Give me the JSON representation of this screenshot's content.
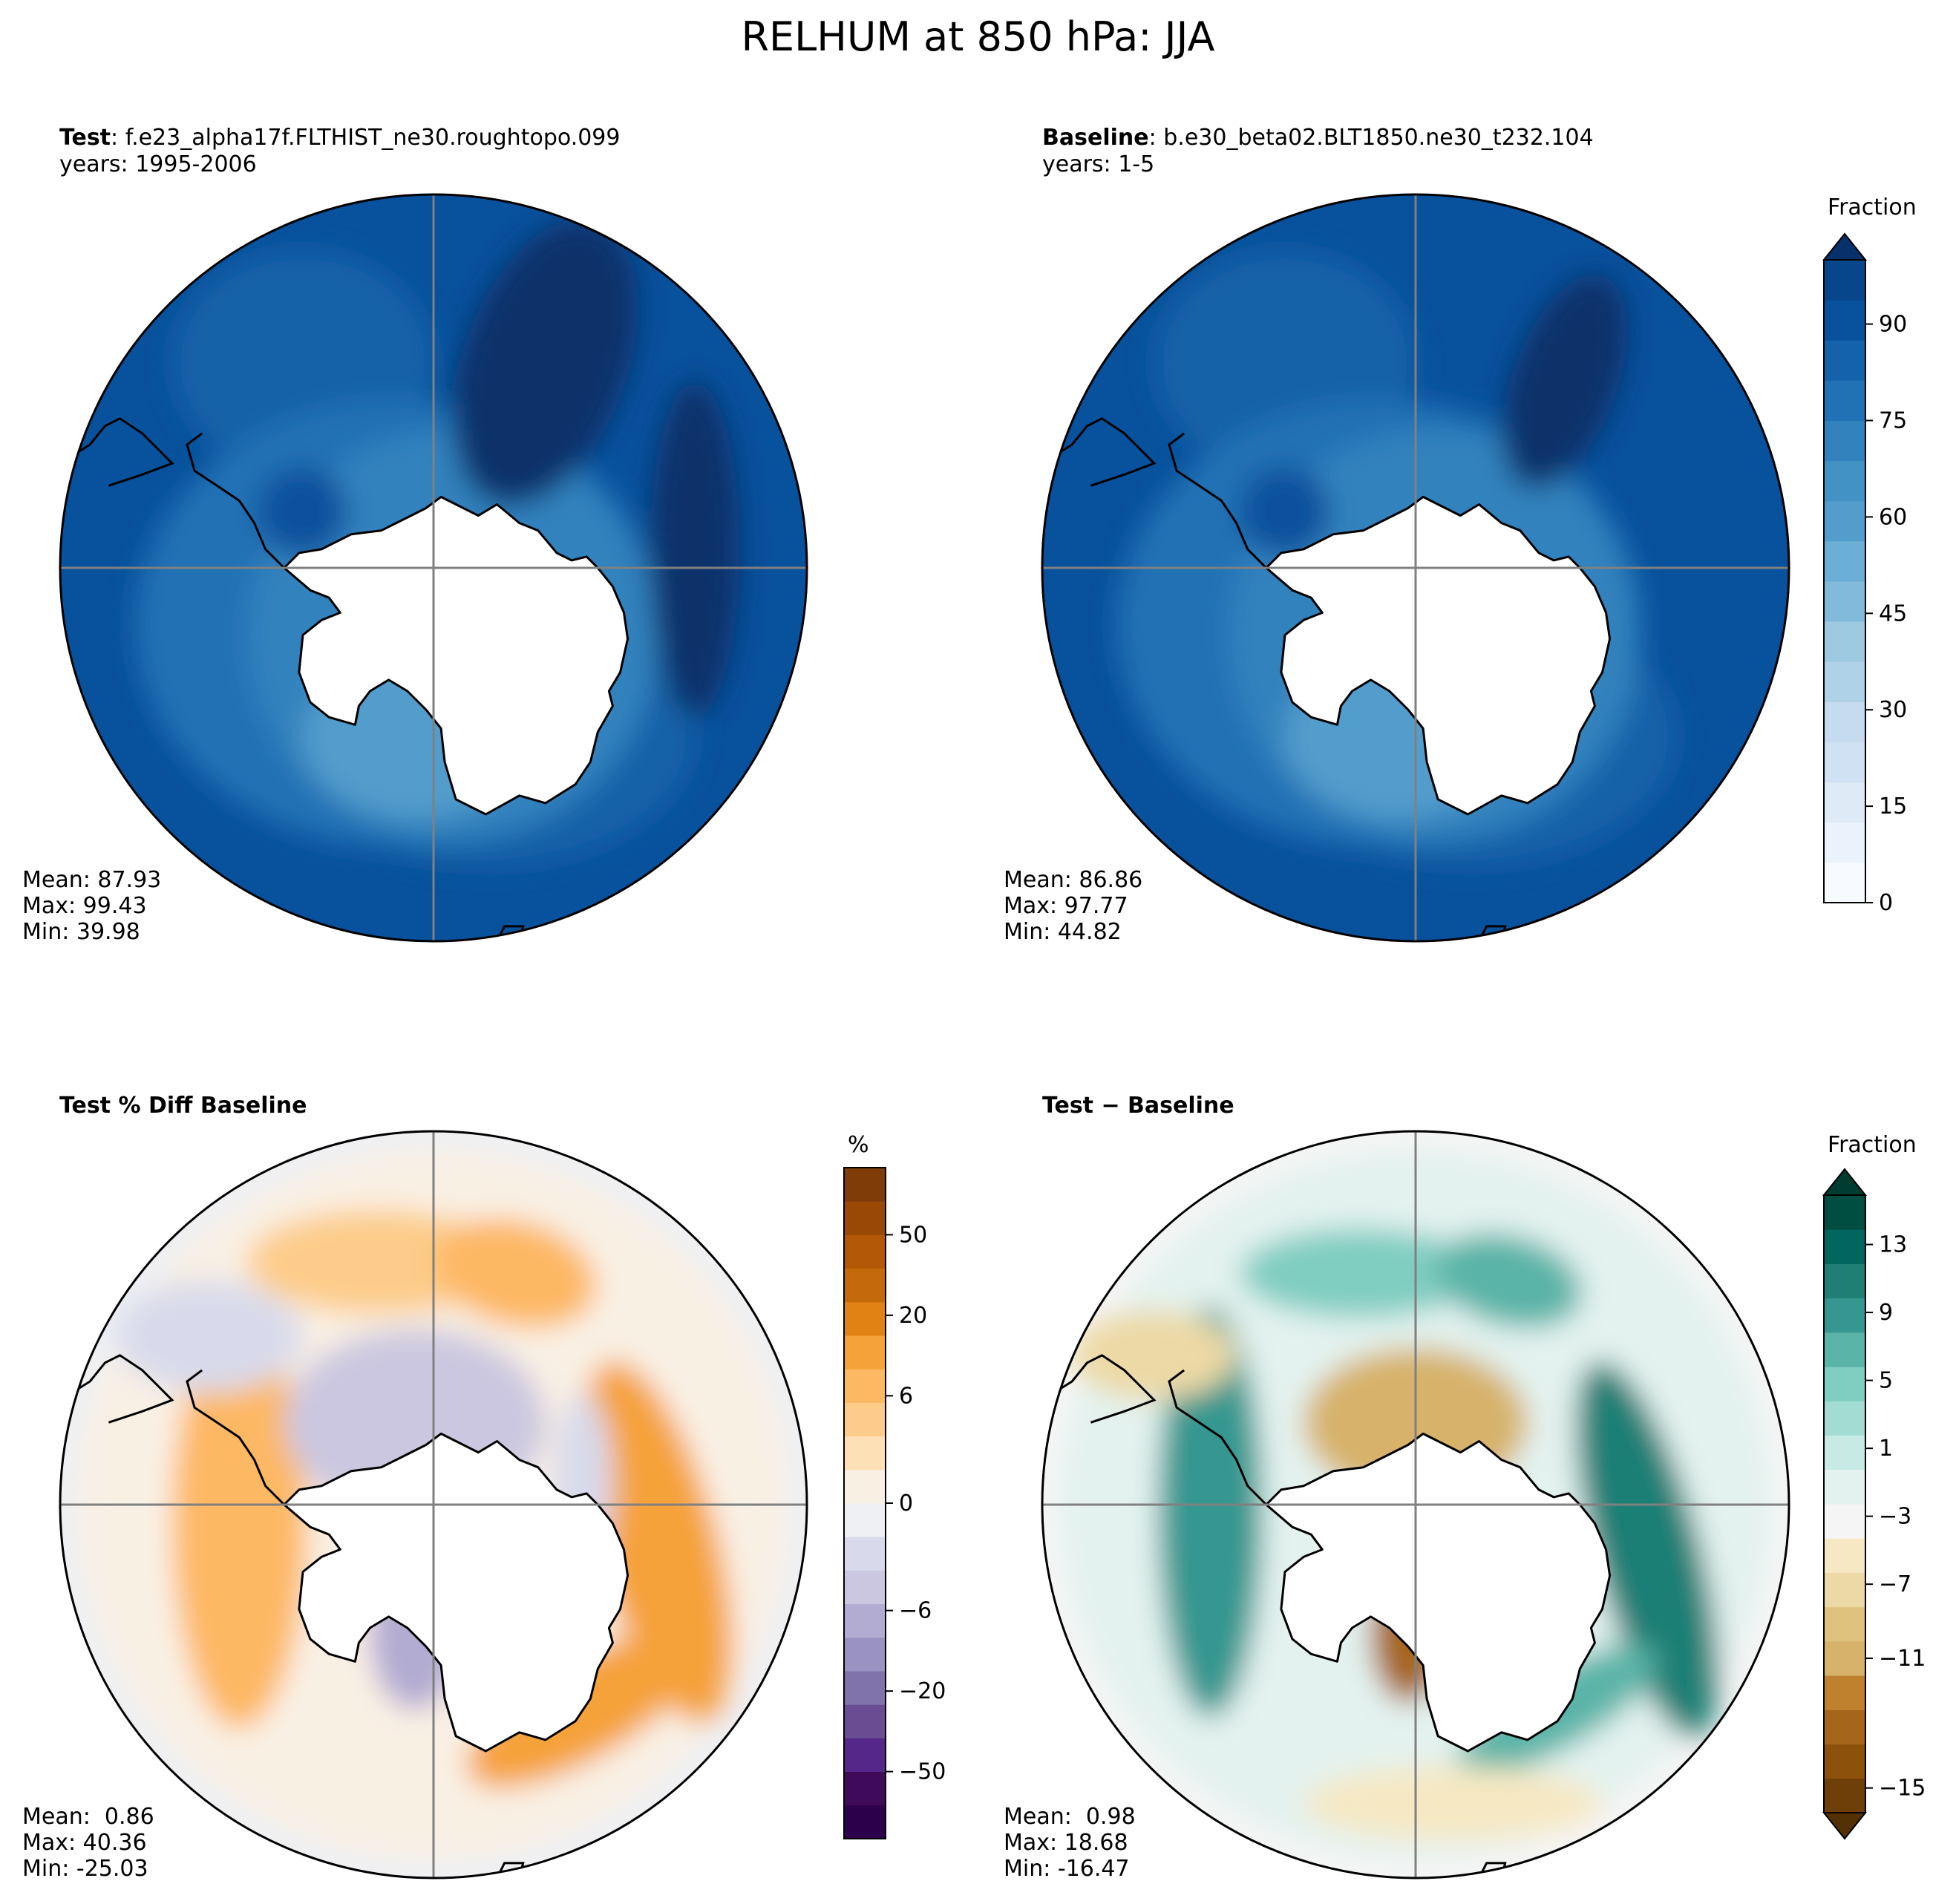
{
  "suptitle": "RELHUM at 850 hPa: JJA",
  "colors": {
    "land": "#ffffff",
    "outline": "#000000",
    "gridline": "#808080",
    "blues": [
      "#f7fbff",
      "#eaf2fb",
      "#deebf7",
      "#cfe1f2",
      "#c6dbef",
      "#b0d2e8",
      "#9ecae1",
      "#82badb",
      "#6baed6",
      "#529dcc",
      "#4292c6",
      "#3282be",
      "#2171b5",
      "#1462a9",
      "#08519c",
      "#08468b",
      "#08306b"
    ],
    "purple_orange": [
      "#2d004b",
      "#3f0a5a",
      "#542788",
      "#6a4c93",
      "#8073ac",
      "#9a92c0",
      "#b2abd2",
      "#cbc7e0",
      "#d8daeb",
      "#eef0f4",
      "#f9f0e4",
      "#fee0b6",
      "#fdcc8a",
      "#fdb863",
      "#f5a23a",
      "#e08214",
      "#c56a0c",
      "#b35806",
      "#9a4806",
      "#7f3b08"
    ],
    "brown_teal": [
      "#543005",
      "#6e3f08",
      "#8c510a",
      "#a6661a",
      "#bf812d",
      "#d7b26a",
      "#dfc27d",
      "#ecd9a5",
      "#f6e8c3",
      "#f5f5f5",
      "#e3f2ef",
      "#c7eae5",
      "#a3dcd3",
      "#80cdc1",
      "#5ab4a8",
      "#35978f",
      "#1f7f75",
      "#01665e",
      "#004d42",
      "#003c30"
    ]
  },
  "panels": {
    "test": {
      "label_bold": "Test",
      "label_sep": ": ",
      "case": "f.e23_alpha17f.FLTHIST_ne30.roughtopo.099",
      "years": "years: 1995-2006",
      "mean": "Mean: 87.93",
      "max": "Max: 99.43",
      "min": "Min: 39.98"
    },
    "baseline": {
      "label_bold": "Baseline",
      "label_sep": ": ",
      "case": "b.e30_beta02.BLT1850.ne30_t232.104",
      "years": "years: 1-5",
      "mean": "Mean: 86.86",
      "max": "Max: 97.77",
      "min": "Min: 44.82"
    },
    "pct_diff": {
      "title": "Test % Diff Baseline",
      "mean": "Mean:  0.86",
      "max": "Max: 40.36",
      "min": "Min: -25.03"
    },
    "diff": {
      "title": "Test − Baseline",
      "mean": "Mean:  0.98",
      "max": "Max: 18.68",
      "min": "Min: -16.47"
    }
  },
  "chart_data": [
    {
      "type": "heatmap",
      "projection": "south-polar-stereographic",
      "panel": "Test",
      "variable": "RELHUM",
      "level": "850 hPa",
      "season": "JJA",
      "colorbar": {
        "label": "Fraction",
        "ticks": [
          "0",
          "15",
          "30",
          "45",
          "60",
          "75",
          "90"
        ],
        "vmin": 0,
        "vmax": 100,
        "extend": "max"
      },
      "stats": {
        "mean": 87.93,
        "max": 99.43,
        "min": 39.98
      }
    },
    {
      "type": "heatmap",
      "projection": "south-polar-stereographic",
      "panel": "Baseline",
      "stats": {
        "mean": 86.86,
        "max": 97.77,
        "min": 44.82
      }
    },
    {
      "type": "heatmap",
      "projection": "south-polar-stereographic",
      "panel": "Test % Diff Baseline",
      "colorbar": {
        "label": "%",
        "ticks": [
          "−50",
          "−20",
          "−6",
          "0",
          "6",
          "20",
          "50"
        ]
      },
      "stats": {
        "mean": 0.86,
        "max": 40.36,
        "min": -25.03
      }
    },
    {
      "type": "heatmap",
      "projection": "south-polar-stereographic",
      "panel": "Test − Baseline",
      "colorbar": {
        "label": "Fraction",
        "ticks": [
          "−15",
          "−11",
          "−7",
          "−3",
          "1",
          "5",
          "9",
          "13"
        ],
        "vmin": -15,
        "vmax": 15,
        "extend": "both"
      },
      "stats": {
        "mean": 0.98,
        "max": 18.68,
        "min": -16.47
      }
    }
  ]
}
